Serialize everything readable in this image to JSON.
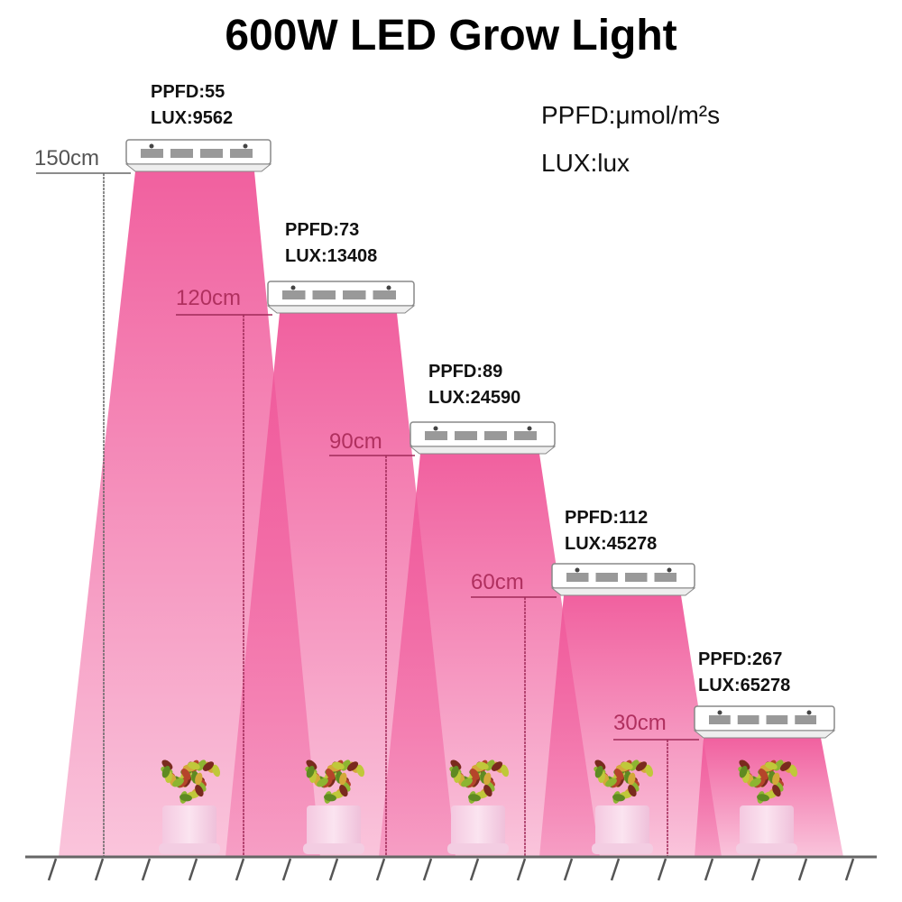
{
  "title": "600W LED Grow Light",
  "units": {
    "ppfd": "PPFD:μmol/m²s",
    "lux": "LUX:lux"
  },
  "beam_color": "#f0589a",
  "lamps": [
    {
      "height": "150cm",
      "ppfd": "PPFD:55",
      "lux": "LUX:9562"
    },
    {
      "height": "120cm",
      "ppfd": "PPFD:73",
      "lux": "LUX:13408"
    },
    {
      "height": "90cm",
      "ppfd": "PPFD:89",
      "lux": "LUX:24590"
    },
    {
      "height": "60cm",
      "ppfd": "PPFD:112",
      "lux": "LUX:45278"
    },
    {
      "height": "30cm",
      "ppfd": "PPFD:267",
      "lux": "LUX:65278"
    }
  ]
}
